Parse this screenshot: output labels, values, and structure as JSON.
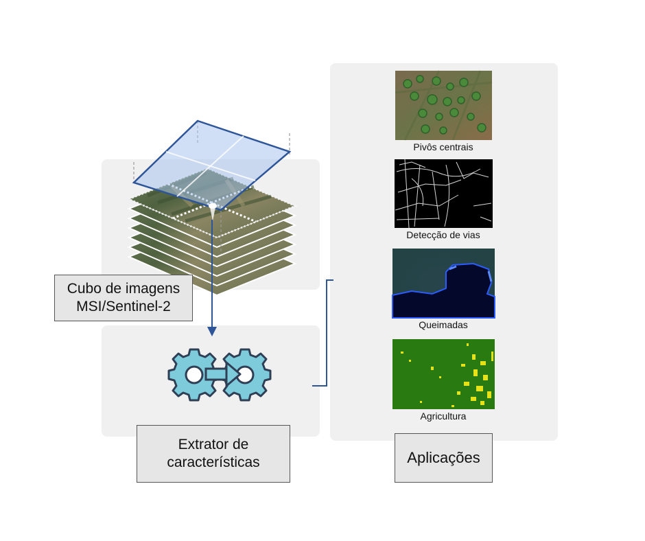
{
  "cube": {
    "label_line1": "Cubo de imagens",
    "label_line2": "MSI/Sentinel-2"
  },
  "extractor": {
    "label_line1": "Extrator de",
    "label_line2": "características"
  },
  "applications": {
    "label": "Aplicações",
    "items": [
      {
        "caption": "Pivôs centrais"
      },
      {
        "caption": "Detecção de vias"
      },
      {
        "caption": "Queimadas"
      },
      {
        "caption": "Agricultura"
      }
    ]
  },
  "colors": {
    "panel": "#f0f0f0",
    "arrow": "#2e5597",
    "gear_fill": "#7ecbdc",
    "gear_stroke": "#2f3f55",
    "selection": "#2e5597"
  }
}
